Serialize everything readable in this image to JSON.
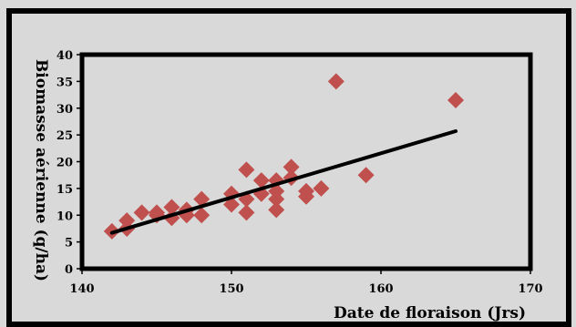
{
  "chart_data": {
    "type": "scatter",
    "xlabel": "Date de floraison (Jrs)",
    "ylabel": "Biomasse aérienne (q/ha)",
    "xlim": [
      140,
      170
    ],
    "ylim": [
      0,
      40
    ],
    "x_ticks": [
      140,
      150,
      160,
      170
    ],
    "y_ticks": [
      0,
      5,
      10,
      15,
      20,
      25,
      30,
      35,
      40
    ],
    "grid": false,
    "colors": {
      "points": "#c0504d",
      "trendline": "#000000",
      "plot_area": "#d9d9d9",
      "chart_background": "#d9d9d9",
      "frame": "#000000"
    },
    "series": [
      {
        "marker": "diamond",
        "x": [
          142,
          143,
          143,
          144,
          145,
          145,
          146,
          146,
          147,
          147,
          148,
          148,
          150,
          150,
          151,
          151,
          151,
          152,
          152,
          153,
          153,
          153,
          153,
          154,
          154,
          155,
          155,
          156,
          157,
          159,
          165
        ],
        "y": [
          7,
          7.5,
          9,
          10.5,
          10,
          10.5,
          9.5,
          11.5,
          10,
          11,
          10,
          13,
          12,
          14,
          10.5,
          13,
          18.5,
          14,
          16.5,
          11,
          13,
          14.5,
          16.5,
          17,
          19,
          13.5,
          14.5,
          15,
          35,
          17.5,
          31.5
        ]
      }
    ],
    "trendline": {
      "type": "linear",
      "x": [
        142,
        165
      ],
      "y": [
        6.7,
        25.7
      ]
    }
  }
}
